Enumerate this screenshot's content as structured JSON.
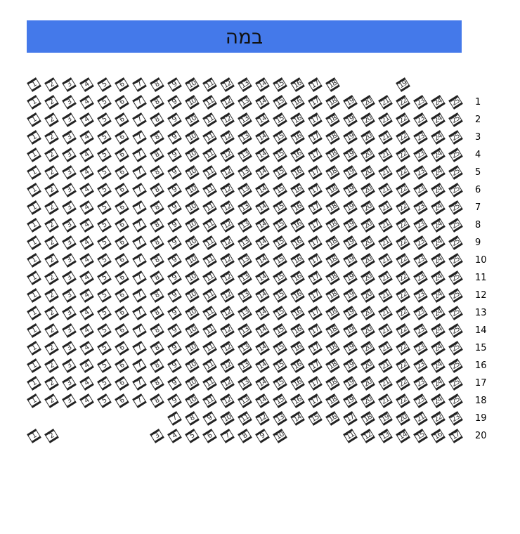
{
  "stage": {
    "label": "במה",
    "color": "#4479ea"
  },
  "seat_icon": "seat-icon",
  "rows": [
    {
      "label": "",
      "seats": [
        1,
        2,
        3,
        4,
        5,
        6,
        7,
        8,
        9,
        10,
        11,
        12,
        13,
        14,
        15,
        16,
        17,
        18,
        null,
        null,
        null,
        19
      ]
    },
    {
      "label": "1",
      "seats": [
        1,
        2,
        3,
        4,
        5,
        6,
        7,
        8,
        9,
        10,
        11,
        12,
        13,
        14,
        15,
        16,
        17,
        18,
        19,
        20,
        21,
        22,
        23,
        24,
        25
      ]
    },
    {
      "label": "2",
      "seats": [
        1,
        2,
        3,
        4,
        5,
        6,
        7,
        8,
        9,
        10,
        11,
        12,
        13,
        14,
        15,
        16,
        17,
        18,
        19,
        20,
        21,
        22,
        23,
        24,
        25
      ]
    },
    {
      "label": "3",
      "seats": [
        1,
        2,
        3,
        4,
        5,
        6,
        7,
        8,
        9,
        10,
        11,
        12,
        13,
        14,
        15,
        16,
        17,
        18,
        19,
        20,
        21,
        22,
        23,
        24,
        25
      ]
    },
    {
      "label": "4",
      "seats": [
        1,
        2,
        3,
        4,
        5,
        6,
        7,
        8,
        9,
        10,
        11,
        12,
        13,
        14,
        15,
        16,
        17,
        18,
        19,
        20,
        21,
        22,
        23,
        24,
        25
      ]
    },
    {
      "label": "5",
      "seats": [
        1,
        2,
        3,
        4,
        5,
        6,
        7,
        8,
        9,
        10,
        11,
        12,
        13,
        14,
        15,
        16,
        17,
        18,
        19,
        20,
        21,
        22,
        23,
        24,
        25
      ]
    },
    {
      "label": "6",
      "seats": [
        1,
        2,
        3,
        4,
        5,
        6,
        7,
        8,
        9,
        10,
        11,
        12,
        13,
        14,
        15,
        16,
        17,
        18,
        19,
        20,
        21,
        22,
        23,
        24,
        25
      ]
    },
    {
      "label": "7",
      "seats": [
        1,
        2,
        3,
        4,
        5,
        6,
        7,
        8,
        9,
        10,
        11,
        12,
        13,
        14,
        15,
        16,
        17,
        18,
        19,
        20,
        21,
        22,
        23,
        24,
        25
      ]
    },
    {
      "label": "8",
      "seats": [
        1,
        2,
        3,
        4,
        5,
        6,
        7,
        8,
        9,
        10,
        11,
        12,
        13,
        14,
        15,
        16,
        17,
        18,
        19,
        20,
        21,
        22,
        23,
        24,
        25
      ]
    },
    {
      "label": "9",
      "seats": [
        1,
        2,
        3,
        4,
        5,
        6,
        7,
        8,
        9,
        10,
        11,
        12,
        13,
        14,
        15,
        16,
        17,
        18,
        19,
        20,
        21,
        22,
        23,
        24,
        25
      ]
    },
    {
      "label": "10",
      "seats": [
        1,
        2,
        3,
        4,
        5,
        6,
        7,
        8,
        9,
        10,
        11,
        12,
        13,
        14,
        15,
        16,
        17,
        18,
        19,
        20,
        21,
        22,
        23,
        24,
        25
      ]
    },
    {
      "label": "11",
      "seats": [
        1,
        2,
        3,
        4,
        5,
        6,
        7,
        8,
        9,
        10,
        11,
        12,
        13,
        14,
        15,
        16,
        17,
        18,
        19,
        20,
        21,
        22,
        23,
        24,
        25
      ]
    },
    {
      "label": "12",
      "seats": [
        1,
        2,
        3,
        4,
        5,
        6,
        7,
        8,
        9,
        10,
        11,
        12,
        13,
        14,
        15,
        16,
        17,
        18,
        19,
        20,
        21,
        22,
        23,
        24,
        25
      ]
    },
    {
      "label": "13",
      "seats": [
        1,
        2,
        3,
        4,
        5,
        6,
        7,
        8,
        9,
        10,
        11,
        12,
        13,
        14,
        15,
        16,
        17,
        18,
        19,
        20,
        21,
        22,
        23,
        24,
        25
      ]
    },
    {
      "label": "14",
      "seats": [
        1,
        2,
        3,
        4,
        5,
        6,
        7,
        8,
        9,
        10,
        11,
        12,
        13,
        14,
        15,
        16,
        17,
        18,
        19,
        20,
        21,
        22,
        23,
        24,
        25
      ]
    },
    {
      "label": "15",
      "seats": [
        1,
        2,
        3,
        4,
        5,
        6,
        7,
        8,
        9,
        10,
        11,
        12,
        13,
        14,
        15,
        16,
        17,
        18,
        19,
        20,
        21,
        22,
        23,
        24,
        25
      ]
    },
    {
      "label": "16",
      "seats": [
        1,
        2,
        3,
        4,
        5,
        6,
        7,
        8,
        9,
        10,
        11,
        12,
        13,
        14,
        15,
        16,
        17,
        18,
        19,
        20,
        21,
        22,
        23,
        24,
        25
      ]
    },
    {
      "label": "17",
      "seats": [
        1,
        2,
        3,
        4,
        5,
        6,
        7,
        8,
        9,
        10,
        11,
        12,
        13,
        14,
        15,
        16,
        17,
        18,
        19,
        20,
        21,
        22,
        23,
        24,
        25
      ]
    },
    {
      "label": "18",
      "seats": [
        1,
        2,
        3,
        4,
        5,
        6,
        7,
        8,
        9,
        10,
        11,
        12,
        13,
        14,
        15,
        16,
        17,
        18,
        19,
        20,
        21,
        22,
        23,
        24,
        25
      ]
    },
    {
      "label": "19",
      "seats": [
        null,
        null,
        null,
        null,
        null,
        null,
        null,
        null,
        7,
        8,
        9,
        10,
        11,
        12,
        13,
        14,
        15,
        16,
        17,
        18,
        19,
        20,
        21,
        22,
        23
      ]
    },
    {
      "label": "20",
      "seats": [
        1,
        2,
        null,
        null,
        null,
        null,
        null,
        3,
        4,
        5,
        6,
        7,
        8,
        9,
        10,
        null,
        null,
        null,
        11,
        12,
        13,
        14,
        15,
        16,
        17
      ]
    }
  ]
}
